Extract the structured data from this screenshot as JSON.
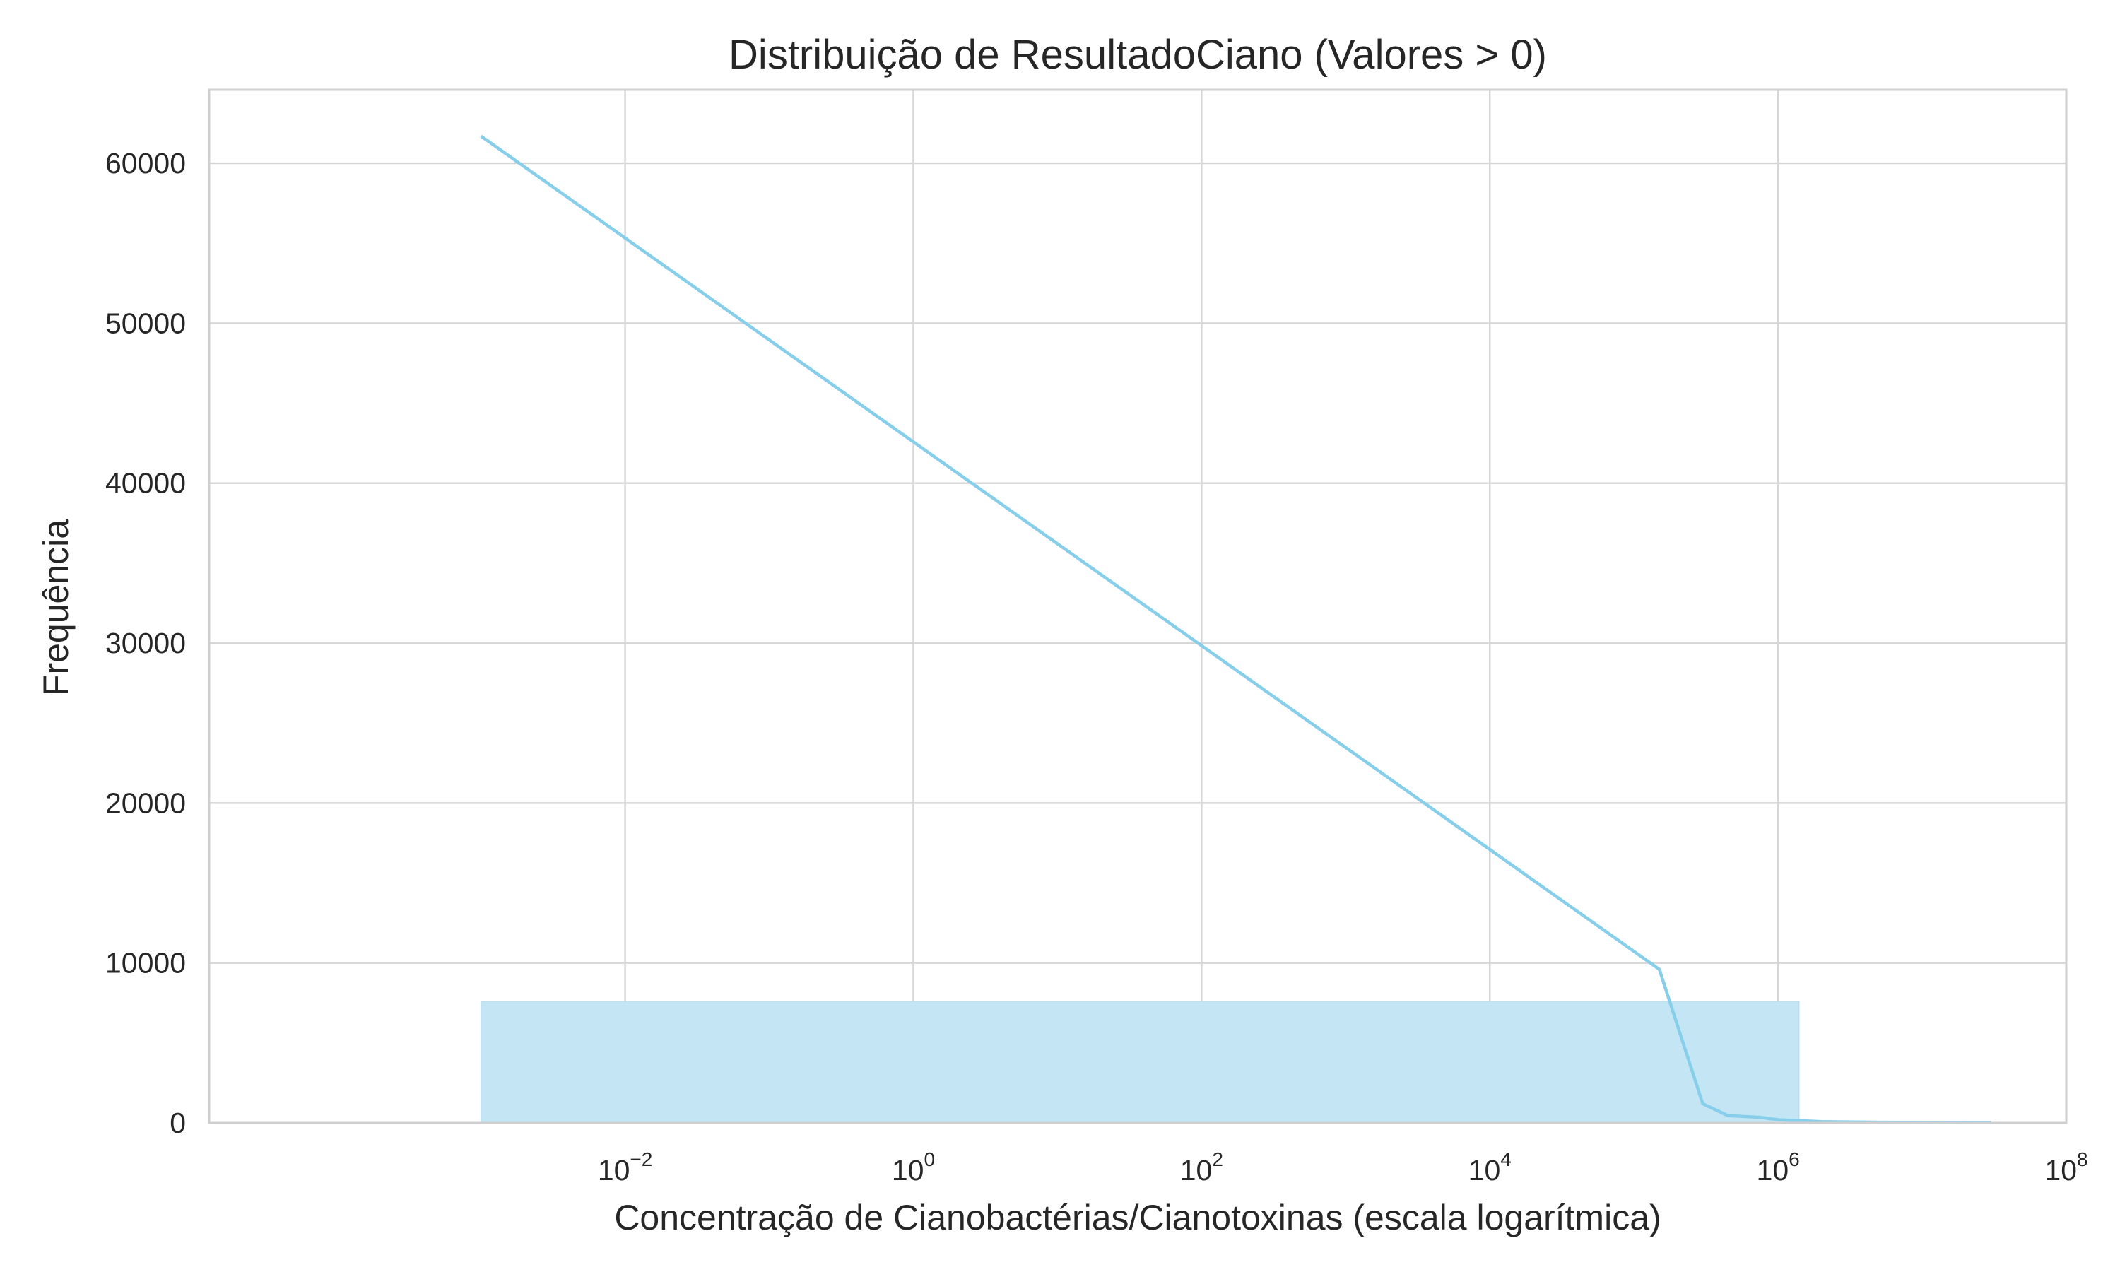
{
  "chart_data": {
    "type": "histogram",
    "title": "Distribuição de ResultadoCiano (Valores > 0)",
    "xlabel": "Concentração de Cianobactérias/Cianotoxinas (escala logarítmica)",
    "ylabel": "Frequência",
    "x_scale": "log",
    "x_range": [
      1.3e-05,
      100000000
    ],
    "ylim": [
      0,
      64600
    ],
    "grid": true,
    "x_ticks": [
      {
        "base": "10",
        "exp": "−2",
        "value": 0.01
      },
      {
        "base": "10",
        "exp": "0",
        "value": 1
      },
      {
        "base": "10",
        "exp": "2",
        "value": 100
      },
      {
        "base": "10",
        "exp": "4",
        "value": 10000
      },
      {
        "base": "10",
        "exp": "6",
        "value": 1000000
      },
      {
        "base": "10",
        "exp": "8",
        "value": 100000000
      }
    ],
    "y_ticks": [
      {
        "label": "0",
        "value": 0
      },
      {
        "label": "10000",
        "value": 10000
      },
      {
        "label": "20000",
        "value": 20000
      },
      {
        "label": "30000",
        "value": 30000
      },
      {
        "label": "40000",
        "value": 40000
      },
      {
        "label": "50000",
        "value": 50000
      },
      {
        "label": "60000",
        "value": 60000
      }
    ],
    "bars": [
      {
        "x_start": 0.001,
        "x_end": 1400000,
        "count": 7600
      },
      {
        "x_start": 1400000,
        "x_end": 2800000,
        "count": 100
      },
      {
        "x_start": 2800000,
        "x_end": 30000000,
        "count": 20
      }
    ],
    "kde_line": [
      {
        "x": 0.001,
        "y": 61700
      },
      {
        "x": 150000,
        "y": 9600
      },
      {
        "x": 300000,
        "y": 1200
      },
      {
        "x": 450000,
        "y": 450
      },
      {
        "x": 750000,
        "y": 350
      },
      {
        "x": 1000000,
        "y": 200
      },
      {
        "x": 2000000,
        "y": 80
      },
      {
        "x": 5000000,
        "y": 40
      },
      {
        "x": 30000000,
        "y": 20
      }
    ],
    "colors": {
      "bar": "#c4e6f4",
      "bar_edge": "#b3dcee",
      "line": "#87ceeb"
    }
  }
}
